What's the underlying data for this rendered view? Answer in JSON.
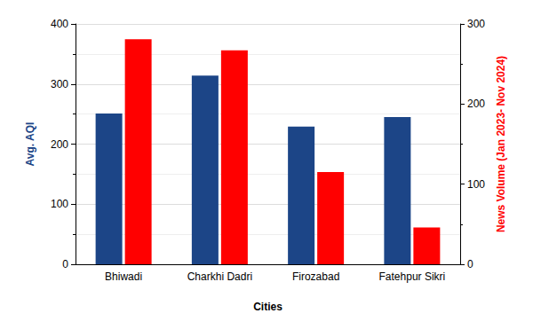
{
  "chart_data": {
    "type": "bar",
    "categories": [
      "Bhiwadi",
      "Charkhi Dadri",
      "Firozabad",
      "Fatehpur Sikri"
    ],
    "x_label": "Cities",
    "y_label": "Avg. AQI",
    "y2_label": "News Volume (Jan 2023- Nov 2024)",
    "series": [
      {
        "name": "Avg. AQI",
        "color": "#1c4587",
        "values": [
          251,
          314,
          229,
          245
        ]
      },
      {
        "name": "News Volume",
        "color": "#ff0000",
        "axis": "y2",
        "values": [
          281,
          267,
          115,
          46
        ]
      }
    ],
    "ylim": [
      0,
      400
    ],
    "yticks": [
      0,
      100,
      200,
      300,
      400
    ],
    "y2lim": [
      0,
      300
    ],
    "y2ticks": [
      0,
      100,
      200,
      300
    ],
    "grid": true
  }
}
